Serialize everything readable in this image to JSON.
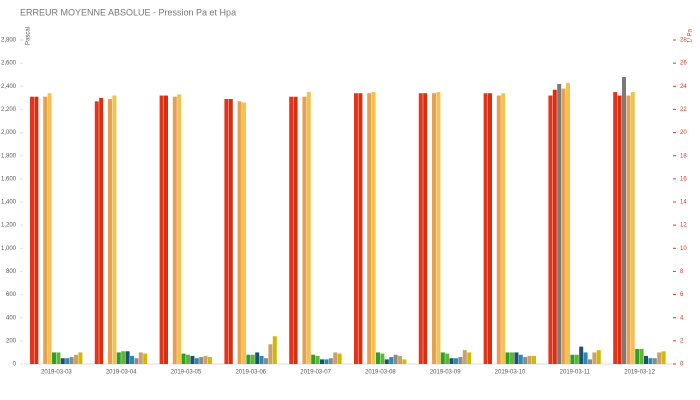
{
  "chart_data": {
    "type": "bar",
    "title": "ERREUR MOYENNE ABSOLUE - Pression Pa et Hpa",
    "y_label": "Pascal",
    "y2_label": "1/ Pa",
    "y2_color": "#e8331c",
    "categories": [
      "2019-03-03",
      "2019-03-04",
      "2019-03-05",
      "2019-03-06",
      "2019-03-07",
      "2019-03-08",
      "2019-03-09",
      "2019-03-10",
      "2019-03-11",
      "2019-03-12"
    ],
    "ylim": [
      0,
      2800
    ],
    "yticks": [
      0,
      200,
      400,
      600,
      800,
      {
        "value": 1000,
        "label": "1,000"
      },
      {
        "value": 1200,
        "label": "1,200"
      },
      {
        "value": 1400,
        "label": "1,400"
      },
      {
        "value": 1600,
        "label": "1,600"
      },
      {
        "value": 1800,
        "label": "1,800"
      },
      {
        "value": 2000,
        "label": "2,000"
      },
      {
        "value": 2200,
        "label": "2,200"
      },
      {
        "value": 2400,
        "label": "2,400"
      },
      {
        "value": 2600,
        "label": "2,600"
      },
      {
        "value": 2800,
        "label": "2,800"
      }
    ],
    "y2lim": [
      0,
      28
    ],
    "y2ticks": [
      0,
      2,
      4,
      6,
      8,
      10,
      12,
      14,
      16,
      18,
      20,
      22,
      24,
      26,
      28
    ],
    "grid": false,
    "series": [
      {
        "color": "#e8331c",
        "values": [
          2310,
          2270,
          2320,
          2290,
          2310,
          2340,
          2340,
          2340,
          2320,
          2350
        ]
      },
      {
        "color": "#d6300f",
        "values": [
          2310,
          2300,
          2320,
          2290,
          2310,
          2340,
          2340,
          2340,
          2370,
          2320
        ]
      },
      {
        "color": "#7a7a7a",
        "values": [
          null,
          null,
          null,
          null,
          null,
          null,
          null,
          null,
          2420,
          2480
        ]
      },
      {
        "color": "#e8a050",
        "values": [
          2310,
          2290,
          2310,
          2270,
          2310,
          2340,
          2340,
          2320,
          2380,
          2320
        ]
      },
      {
        "color": "#f2c14e",
        "values": [
          2340,
          2320,
          2330,
          2260,
          2350,
          2350,
          2350,
          2340,
          2430,
          2350
        ]
      },
      {
        "color": "#2ca02c",
        "values": [
          100,
          100,
          90,
          80,
          80,
          100,
          100,
          100,
          80,
          130
        ]
      },
      {
        "color": "#5cb82c",
        "values": [
          100,
          110,
          80,
          80,
          70,
          90,
          90,
          100,
          80,
          130
        ]
      },
      {
        "color": "#1f4e79",
        "values": [
          50,
          110,
          70,
          100,
          40,
          40,
          50,
          100,
          150,
          70
        ]
      },
      {
        "color": "#2a8ab0",
        "values": [
          50,
          70,
          50,
          70,
          40,
          60,
          50,
          80,
          100,
          50
        ]
      },
      {
        "color": "#8a8a8a",
        "values": [
          60,
          50,
          60,
          50,
          50,
          80,
          60,
          60,
          40,
          50
        ]
      },
      {
        "color": "#c8a26b",
        "values": [
          80,
          100,
          70,
          170,
          100,
          70,
          120,
          70,
          100,
          100
        ]
      },
      {
        "color": "#d4b800",
        "values": [
          100,
          90,
          60,
          240,
          90,
          40,
          100,
          70,
          120,
          110
        ]
      }
    ]
  }
}
